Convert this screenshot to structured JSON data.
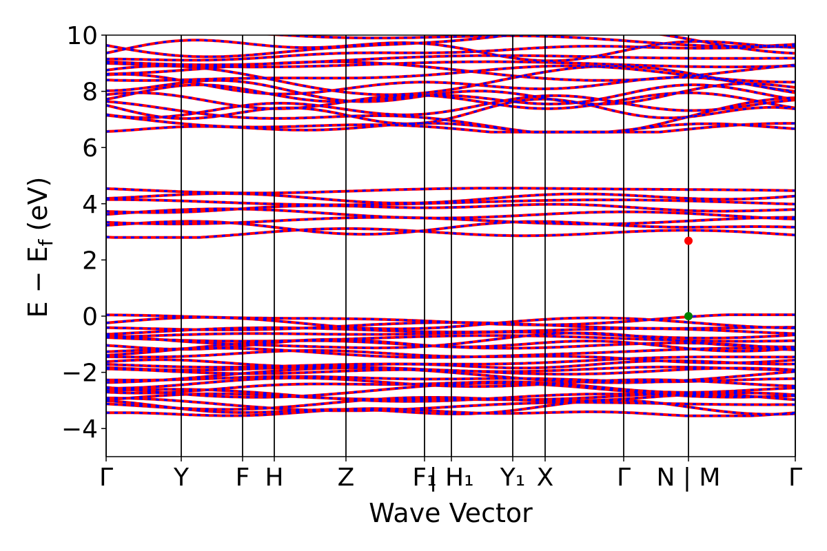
{
  "chart_data": {
    "type": "line",
    "title": "",
    "xlabel": "Wave Vector",
    "ylabel": "E − E",
    "ylabel_sub": "f",
    "ylabel_unit": " (eV)",
    "ylim": [
      -5,
      10
    ],
    "yticks": [
      -4,
      -2,
      0,
      2,
      4,
      6,
      8,
      10
    ],
    "ytick_labels": [
      "−4",
      "−2",
      "0",
      "2",
      "4",
      "6",
      "8",
      "10"
    ],
    "xlim": [
      0,
      1
    ],
    "kpoints": [
      {
        "label": "Γ",
        "x": 0.0
      },
      {
        "label": "Y",
        "x": 0.109
      },
      {
        "label": "F",
        "x": 0.198
      },
      {
        "label": "H",
        "x": 0.244
      },
      {
        "label": "Z",
        "x": 0.348
      },
      {
        "label": "F₁",
        "x": 0.462
      },
      {
        "label": "| H₁",
        "x": 0.501
      },
      {
        "label": "Y₁",
        "x": 0.59
      },
      {
        "label": "X",
        "x": 0.637
      },
      {
        "label": "Γ",
        "x": 0.751
      },
      {
        "label": "N | M",
        "x": 0.845
      },
      {
        "label": "Γ",
        "x": 1.0
      }
    ],
    "series": [
      {
        "color": "#ff0000"
      },
      {
        "color": "#0000ff"
      }
    ],
    "vbm": {
      "x": 0.845,
      "y": 0.0,
      "color": "#008000"
    },
    "cbm": {
      "x": 0.845,
      "y": 2.68,
      "color": "#ff0000"
    },
    "grid": false,
    "legend": "none"
  }
}
